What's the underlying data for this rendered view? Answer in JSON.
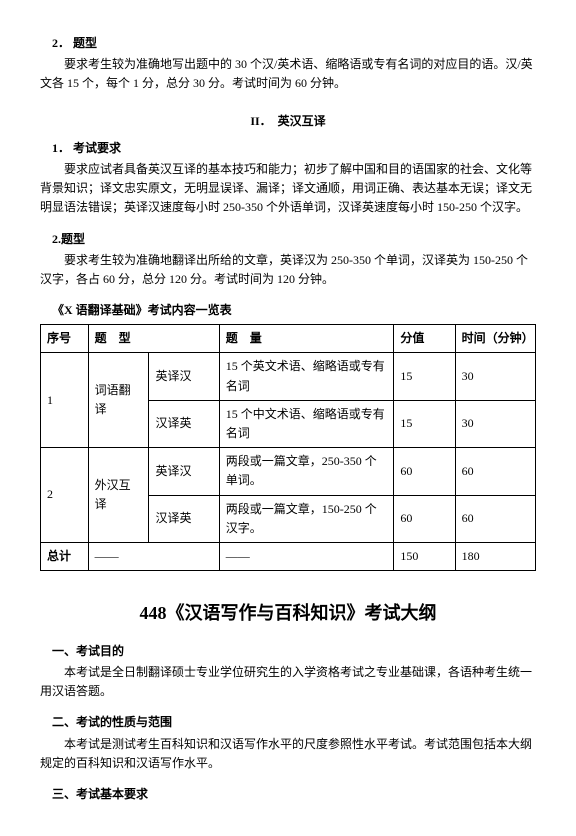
{
  "sec2": {
    "num": "2．",
    "title": "题型",
    "body": "要求考生较为准确地写出题中的 30 个汉/英术语、缩略语或专有名词的对应目的语。汉/英文各 15 个，每个 1 分，总分 30 分。考试时间为 60 分钟。"
  },
  "part2": {
    "heading": "II．　英汉互译",
    "req": {
      "num": "1．",
      "title": "考试要求",
      "body": "要求应试者具备英汉互译的基本技巧和能力；初步了解中国和目的语国家的社会、文化等背景知识；译文忠实原文，无明显误译、漏译；译文通顺，用词正确、表达基本无误；译文无明显语法错误；英译汉速度每小时 250-350 个外语单词，汉译英速度每小时 150-250 个汉字。"
    },
    "type": {
      "num": "2.",
      "title": "题型",
      "body": "要求考生较为准确地翻译出所给的文章，英译汉为 250-350 个单词，汉译英为 150-250 个汉字，各占 60 分，总分 120 分。考试时间为 120 分钟。"
    }
  },
  "tableTitle": "《X 语翻译基础》考试内容一览表",
  "table": {
    "headers": [
      "序号",
      "题　型",
      "题　量",
      "分值",
      "时间（分钟）"
    ],
    "rows": [
      {
        "no": "1",
        "group": "词语翻译",
        "sub": "英译汉",
        "amount": "15 个英文术语、缩略语或专有名词",
        "score": "15",
        "time": "30"
      },
      {
        "sub": "汉译英",
        "amount": "15 个中文术语、缩略语或专有名词",
        "score": "15",
        "time": "30"
      },
      {
        "no": "2",
        "group": "外汉互译",
        "sub": "英译汉",
        "amount": "两段或一篇文章，250-350 个单词。",
        "score": "60",
        "time": "60"
      },
      {
        "sub": "汉译英",
        "amount": "两段或一篇文章，150-250 个汉字。",
        "score": "60",
        "time": "60"
      }
    ],
    "total": {
      "label": "总计",
      "dash": "——",
      "score": "150",
      "time": "180"
    }
  },
  "course448": {
    "title": "448《汉语写作与百科知识》考试大纲",
    "s1": {
      "head": "一、考试目的",
      "body": "本考试是全日制翻译硕士专业学位研究生的入学资格考试之专业基础课，各语种考生统一用汉语答题。"
    },
    "s2": {
      "head": "二、考试的性质与范围",
      "body": "本考试是测试考生百科知识和汉语写作水平的尺度参照性水平考试。考试范围包括本大纲规定的百科知识和汉语写作水平。"
    },
    "s3": {
      "head": "三、考试基本要求"
    }
  }
}
